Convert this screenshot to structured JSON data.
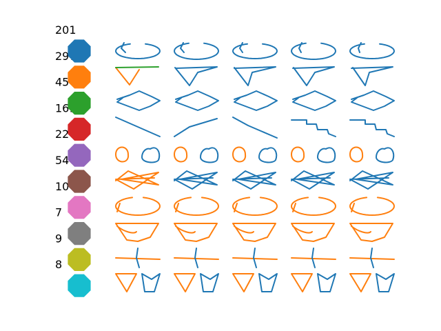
{
  "chart_data": {
    "type": "scatter",
    "title": "",
    "grid": false,
    "axes_visible": false,
    "classes": [
      {
        "count": "201",
        "color": "#1f77b4"
      },
      {
        "count": "297",
        "color": "#ff7f0e"
      },
      {
        "count": "45",
        "color": "#2ca02c"
      },
      {
        "count": "161",
        "color": "#d62728"
      },
      {
        "count": "22",
        "color": "#9467bd"
      },
      {
        "count": "54",
        "color": "#8c564b"
      },
      {
        "count": "10",
        "color": "#e377c2"
      },
      {
        "count": "7",
        "color": "#7f7f7f"
      },
      {
        "count": "9",
        "color": "#bcbd22"
      },
      {
        "count": "8",
        "color": "#17becf"
      }
    ],
    "samples_per_class": 5,
    "stroke_colors": {
      "first": "#1f77b4",
      "second": "#ff7f0e",
      "third": "#2ca02c"
    }
  }
}
